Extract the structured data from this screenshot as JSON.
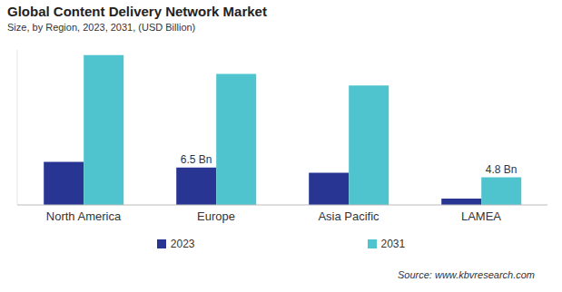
{
  "chart_data": {
    "type": "bar",
    "title": "Global Content Delivery Network Market",
    "subtitle": "Size, by Region, 2023, 2031, (USD Billion)",
    "categories": [
      "North America",
      "Europe",
      "Asia Pacific",
      "LAMEA"
    ],
    "series": [
      {
        "name": "2023",
        "color": "#283593",
        "values": [
          7.5,
          6.5,
          5.6,
          1.1
        ],
        "value_labels": [
          null,
          "6.5 Bn",
          null,
          null
        ]
      },
      {
        "name": "2031",
        "color": "#4fc4cf",
        "values": [
          26.1,
          22.8,
          20.8,
          4.8
        ],
        "value_labels": [
          null,
          null,
          null,
          "4.8 Bn"
        ]
      }
    ],
    "ylim": [
      0,
      27
    ],
    "tick_labels": "x",
    "legend": "bottom",
    "source": "Source: www.kbvresearch.com"
  }
}
